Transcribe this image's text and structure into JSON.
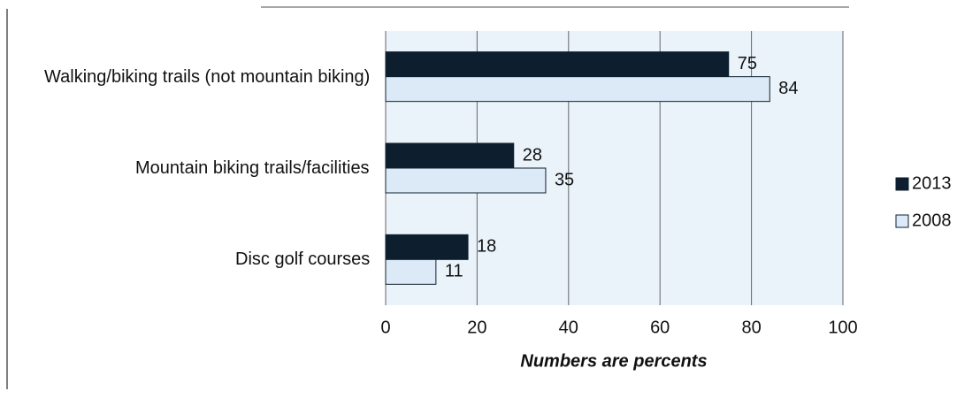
{
  "chart_data": {
    "type": "hbar",
    "categories": [
      "Walking/biking trails (not mountain biking)",
      "Mountain biking trails/facilities",
      "Disc golf courses"
    ],
    "series": [
      {
        "name": "2013",
        "color": "#0d1f2e",
        "values": [
          75,
          28,
          18
        ]
      },
      {
        "name": "2008",
        "color": "#dce9f7",
        "values": [
          84,
          35,
          11
        ]
      }
    ],
    "xlim": [
      0,
      100
    ],
    "xticks": [
      0,
      20,
      40,
      60,
      80,
      100
    ],
    "xlabel": "Numbers are percents",
    "grid": true,
    "legend": "right"
  }
}
